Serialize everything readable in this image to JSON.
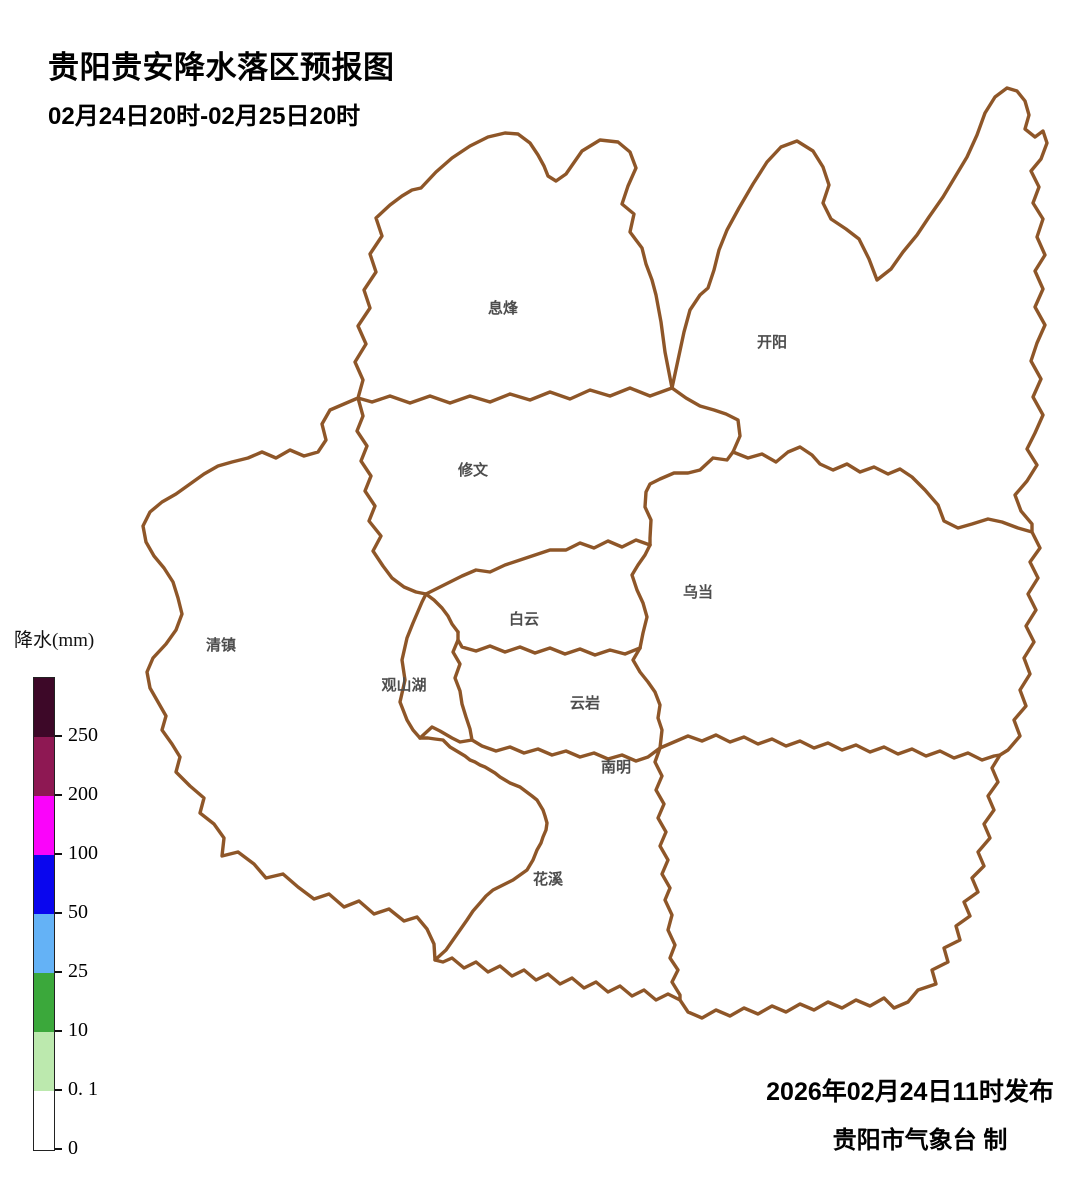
{
  "header": {
    "title": "贵阳贵安降水落区预报图",
    "period": "02月24日20时-02月25日20时"
  },
  "legend": {
    "title": "降水(mm)",
    "bands": [
      {
        "color": "#3d0828",
        "label": "250"
      },
      {
        "color": "#8e1853",
        "label": "200"
      },
      {
        "color": "#fa04fa",
        "label": "100"
      },
      {
        "color": "#0a06ee",
        "label": "50"
      },
      {
        "color": "#64b2f6",
        "label": "25"
      },
      {
        "color": "#3ba83b",
        "label": "10"
      },
      {
        "color": "#bce9ae",
        "label": "0. 1"
      },
      {
        "color": "#ffffff",
        "label": "0"
      }
    ]
  },
  "map": {
    "boundary_color": "#8e5628",
    "label_color": "#4d4d4d",
    "districts": [
      {
        "label": "息烽"
      },
      {
        "label": "开阳"
      },
      {
        "label": "修文"
      },
      {
        "label": "清镇"
      },
      {
        "label": "白云"
      },
      {
        "label": "乌当"
      },
      {
        "label": "观山湖"
      },
      {
        "label": "云岩"
      },
      {
        "label": "南明"
      },
      {
        "label": "花溪"
      }
    ]
  },
  "footer": {
    "issued": "2026年02月24日11时发布",
    "producer": "贵阳市气象台  制"
  }
}
